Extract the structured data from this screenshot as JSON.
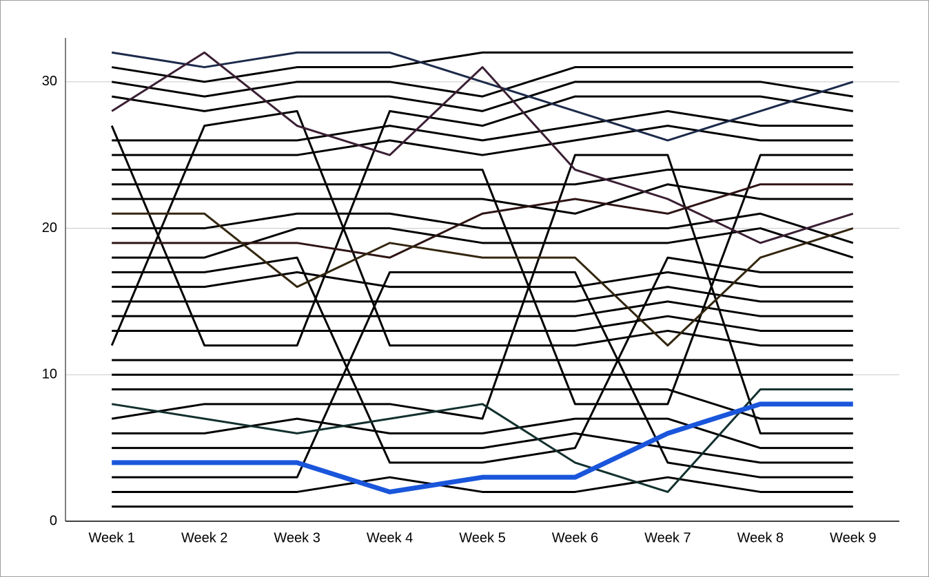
{
  "chart_data": {
    "type": "line",
    "categories": [
      "Week 1",
      "Week 2",
      "Week 3",
      "Week 4",
      "Week 5",
      "Week 6",
      "Week 7",
      "Week 8",
      "Week 9"
    ],
    "ylim": [
      0,
      33
    ],
    "yticks": [
      0,
      10,
      20,
      30
    ],
    "grid": true,
    "series": [
      {
        "color": "#000000",
        "values": [
          1,
          1,
          1,
          1,
          1,
          1,
          1,
          1,
          1
        ]
      },
      {
        "color": "#000000",
        "values": [
          2,
          2,
          2,
          3,
          2,
          2,
          3,
          2,
          2
        ]
      },
      {
        "color": "#000000",
        "values": [
          3,
          3,
          3,
          17,
          17,
          17,
          4,
          3,
          3
        ]
      },
      {
        "color": "#000000",
        "values": [
          5,
          5,
          5,
          5,
          5,
          6,
          5,
          4,
          4
        ]
      },
      {
        "color": "#000000",
        "values": [
          6,
          6,
          7,
          6,
          6,
          7,
          7,
          5,
          5
        ]
      },
      {
        "color": "#000000",
        "values": [
          7,
          8,
          8,
          8,
          7,
          25,
          25,
          6,
          6
        ]
      },
      {
        "color": "#000000",
        "values": [
          9,
          9,
          9,
          9,
          9,
          9,
          9,
          7,
          7
        ]
      },
      {
        "color": "#000000",
        "values": [
          10,
          10,
          10,
          10,
          10,
          10,
          10,
          10,
          10
        ]
      },
      {
        "color": "#000000",
        "values": [
          11,
          11,
          11,
          11,
          11,
          11,
          11,
          11,
          11
        ]
      },
      {
        "color": "#000000",
        "values": [
          12,
          27,
          28,
          12,
          12,
          12,
          13,
          12,
          12
        ]
      },
      {
        "color": "#000000",
        "values": [
          13,
          13,
          13,
          13,
          13,
          13,
          14,
          13,
          13
        ]
      },
      {
        "color": "#000000",
        "values": [
          14,
          14,
          14,
          14,
          14,
          14,
          15,
          14,
          14
        ]
      },
      {
        "color": "#000000",
        "values": [
          15,
          15,
          15,
          15,
          15,
          15,
          16,
          15,
          15
        ]
      },
      {
        "color": "#000000",
        "values": [
          16,
          16,
          17,
          16,
          16,
          16,
          17,
          16,
          16
        ]
      },
      {
        "color": "#000000",
        "values": [
          17,
          17,
          18,
          4,
          4,
          5,
          18,
          17,
          17
        ]
      },
      {
        "color": "#000000",
        "values": [
          18,
          18,
          20,
          20,
          19,
          19,
          19,
          20,
          18
        ]
      },
      {
        "color": "#000000",
        "values": [
          20,
          20,
          21,
          21,
          20,
          20,
          20,
          21,
          19
        ]
      },
      {
        "color": "#000000",
        "values": [
          22,
          22,
          22,
          22,
          22,
          21,
          23,
          22,
          22
        ]
      },
      {
        "color": "#000000",
        "values": [
          23,
          23,
          23,
          23,
          23,
          23,
          24,
          24,
          24
        ]
      },
      {
        "color": "#000000",
        "values": [
          24,
          24,
          24,
          24,
          24,
          8,
          8,
          25,
          25
        ]
      },
      {
        "color": "#000000",
        "values": [
          25,
          25,
          25,
          26,
          25,
          26,
          27,
          26,
          26
        ]
      },
      {
        "color": "#000000",
        "values": [
          26,
          26,
          26,
          27,
          26,
          27,
          28,
          27,
          27
        ]
      },
      {
        "color": "#000000",
        "values": [
          27,
          12,
          12,
          28,
          27,
          29,
          29,
          29,
          28
        ]
      },
      {
        "color": "#000000",
        "values": [
          29,
          28,
          29,
          29,
          28,
          30,
          30,
          30,
          29
        ]
      },
      {
        "color": "#000000",
        "values": [
          30,
          29,
          30,
          30,
          29,
          31,
          31,
          31,
          31
        ]
      },
      {
        "color": "#000000",
        "values": [
          31,
          30,
          31,
          31,
          32,
          32,
          32,
          32,
          32
        ]
      },
      {
        "color": "#1c2a4a",
        "values": [
          32,
          31,
          32,
          32,
          30,
          28,
          26,
          28,
          30
        ]
      },
      {
        "color": "#3a1f33",
        "values": [
          28,
          32,
          27,
          25,
          31,
          24,
          22,
          19,
          21
        ]
      },
      {
        "color": "#2e1414",
        "values": [
          19,
          19,
          19,
          18,
          21,
          22,
          21,
          23,
          23
        ]
      },
      {
        "color": "#33260f",
        "values": [
          21,
          21,
          16,
          19,
          18,
          18,
          12,
          18,
          20
        ]
      },
      {
        "color": "#12302e",
        "values": [
          8,
          7,
          6,
          7,
          8,
          4,
          2,
          9,
          9
        ]
      },
      {
        "color": "#1a56db",
        "values": [
          4,
          4,
          4,
          2,
          3,
          3,
          6,
          8,
          8
        ],
        "width": 7
      }
    ]
  }
}
